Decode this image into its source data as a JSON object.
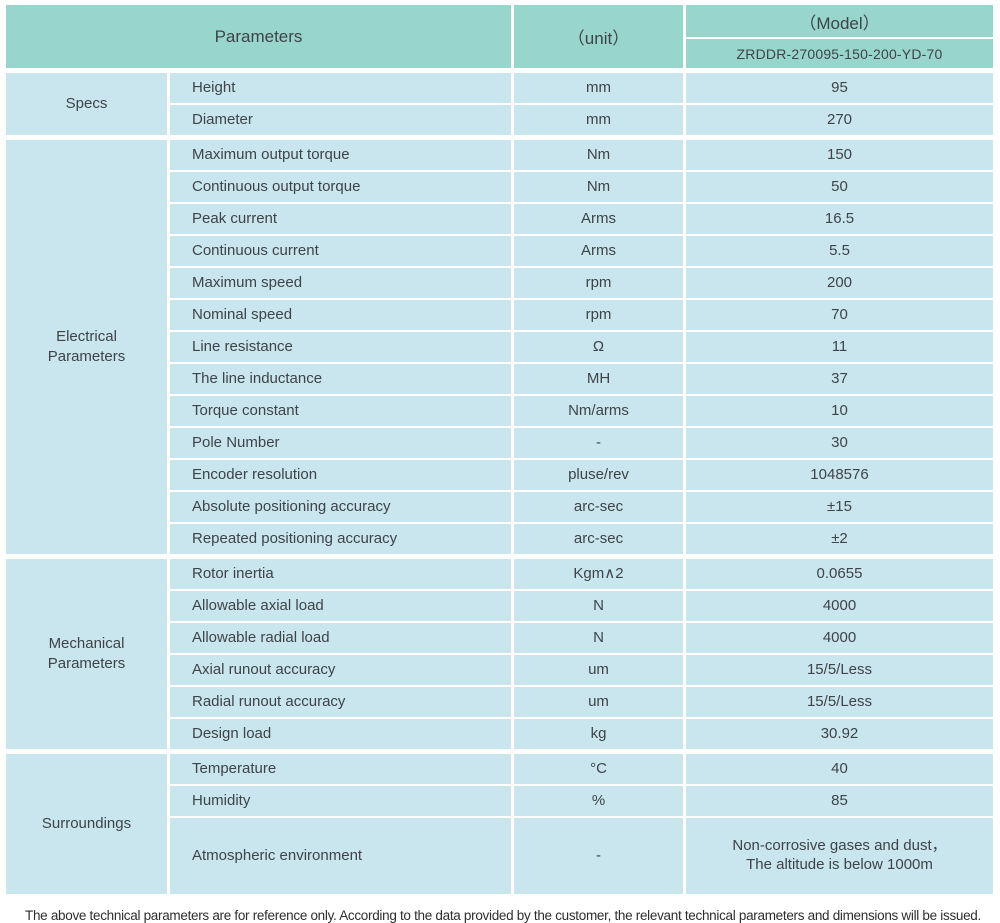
{
  "colors": {
    "header_bg": "#98d5cd",
    "row_bg": "#c9e5ee",
    "text": "#3e4448",
    "separator": "#ffffff",
    "footer_text": "#2e2e2e"
  },
  "header": {
    "parameters_label": "Parameters",
    "unit_label": "（unit）",
    "model_label": "（Model）",
    "model_value": "ZRDDR-270095-150-200-YD-70"
  },
  "sections": [
    {
      "category": "Specs",
      "rows": [
        {
          "parameter": "Height",
          "unit": "mm",
          "value": "95"
        },
        {
          "parameter": "Diameter",
          "unit": "mm",
          "value": "270"
        }
      ]
    },
    {
      "category": "Electrical\nParameters",
      "rows": [
        {
          "parameter": "Maximum output torque",
          "unit": "Nm",
          "value": "150"
        },
        {
          "parameter": "Continuous output torque",
          "unit": "Nm",
          "value": "50"
        },
        {
          "parameter": "Peak current",
          "unit": "Arms",
          "value": "16.5"
        },
        {
          "parameter": "Continuous current",
          "unit": "Arms",
          "value": "5.5"
        },
        {
          "parameter": "Maximum speed",
          "unit": "rpm",
          "value": "200"
        },
        {
          "parameter": "Nominal speed",
          "unit": "rpm",
          "value": "70"
        },
        {
          "parameter": "Line resistance",
          "unit": "Ω",
          "value": "11"
        },
        {
          "parameter": "The line inductance",
          "unit": "MH",
          "value": "37"
        },
        {
          "parameter": "Torque constant",
          "unit": "Nm/arms",
          "value": "10"
        },
        {
          "parameter": "Pole Number",
          "unit": "-",
          "value": "30"
        },
        {
          "parameter": "Encoder resolution",
          "unit": "pluse/rev",
          "value": "1048576"
        },
        {
          "parameter": "Absolute positioning accuracy",
          "unit": "arc-sec",
          "value": "±15"
        },
        {
          "parameter": "Repeated positioning accuracy",
          "unit": "arc-sec",
          "value": "±2"
        }
      ]
    },
    {
      "category": "Mechanical\nParameters",
      "rows": [
        {
          "parameter": "Rotor inertia",
          "unit": "Kgm∧2",
          "value": "0.0655"
        },
        {
          "parameter": "Allowable axial load",
          "unit": "N",
          "value": "4000"
        },
        {
          "parameter": "Allowable radial load",
          "unit": "N",
          "value": "4000"
        },
        {
          "parameter": "Axial runout accuracy",
          "unit": "um",
          "value": "15/5/Less"
        },
        {
          "parameter": "Radial runout accuracy",
          "unit": "um",
          "value": "15/5/Less"
        },
        {
          "parameter": "Design load",
          "unit": "kg",
          "value": "30.92"
        }
      ]
    },
    {
      "category": "Surroundings",
      "rows": [
        {
          "parameter": "Temperature",
          "unit": "°C",
          "value": "40"
        },
        {
          "parameter": "Humidity",
          "unit": "%",
          "value": "85"
        },
        {
          "parameter": "Atmospheric environment",
          "unit": "-",
          "value": "Non-corrosive gases and dust，\nThe altitude is below 1000m",
          "tall": true
        }
      ]
    }
  ],
  "footer_note": "The above technical parameters are for reference only. According to the data provided by the customer, the relevant technical parameters and dimensions will be issued."
}
